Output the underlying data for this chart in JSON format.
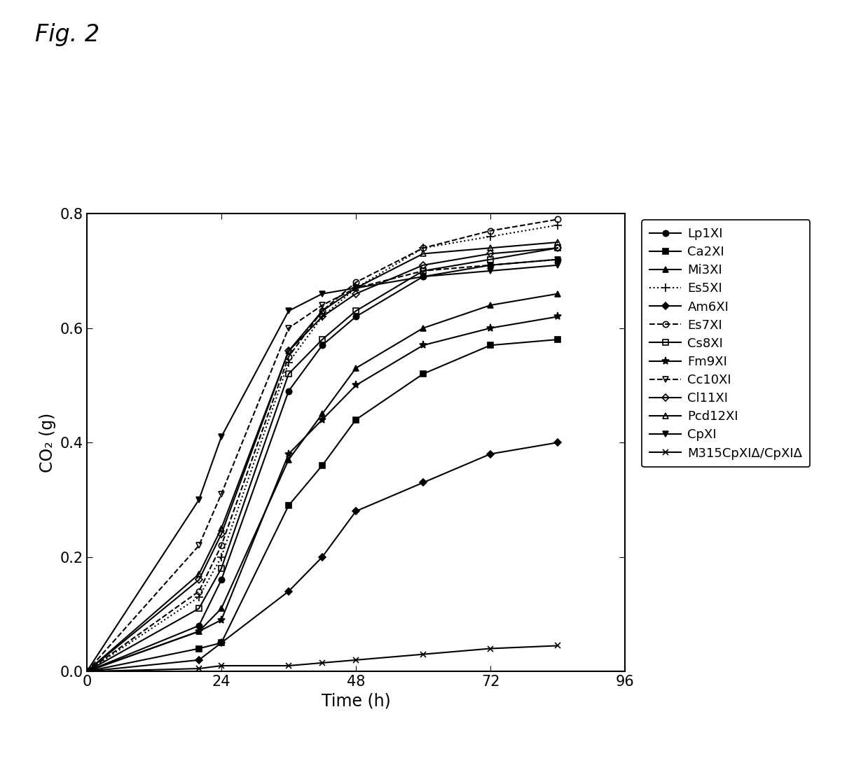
{
  "fig_label": "Fig. 2",
  "xlabel": "Time (h)",
  "ylabel": "CO₂ (g)",
  "xlim": [
    0,
    96
  ],
  "ylim": [
    0,
    0.8
  ],
  "xticks": [
    0,
    24,
    48,
    72,
    96
  ],
  "yticks": [
    0.0,
    0.2,
    0.4,
    0.6,
    0.8
  ],
  "series": [
    {
      "label": "Lp1XI",
      "marker": "o",
      "markersize": 6,
      "linestyle": "-",
      "fillstyle": "full",
      "x": [
        0,
        20,
        24,
        36,
        42,
        48,
        60,
        72,
        84
      ],
      "y": [
        0,
        0.08,
        0.16,
        0.49,
        0.57,
        0.62,
        0.69,
        0.71,
        0.72
      ]
    },
    {
      "label": "Ca2XI",
      "marker": "s",
      "markersize": 6,
      "linestyle": "-",
      "fillstyle": "full",
      "x": [
        0,
        20,
        24,
        36,
        42,
        48,
        60,
        72,
        84
      ],
      "y": [
        0,
        0.04,
        0.05,
        0.29,
        0.36,
        0.44,
        0.52,
        0.57,
        0.58
      ]
    },
    {
      "label": "Mi3XI",
      "marker": "^",
      "markersize": 6,
      "linestyle": "-",
      "fillstyle": "full",
      "x": [
        0,
        20,
        24,
        36,
        42,
        48,
        60,
        72,
        84
      ],
      "y": [
        0,
        0.07,
        0.11,
        0.37,
        0.45,
        0.53,
        0.6,
        0.64,
        0.66
      ]
    },
    {
      "label": "Es5XI",
      "marker": "+",
      "markersize": 8,
      "linestyle": ":",
      "fillstyle": "full",
      "x": [
        0,
        20,
        24,
        36,
        42,
        48,
        60,
        72,
        84
      ],
      "y": [
        0,
        0.13,
        0.2,
        0.54,
        0.62,
        0.67,
        0.74,
        0.76,
        0.78
      ]
    },
    {
      "label": "Am6XI",
      "marker": "D",
      "markersize": 5,
      "linestyle": "-",
      "fillstyle": "full",
      "x": [
        0,
        20,
        24,
        36,
        42,
        48,
        60,
        72,
        84
      ],
      "y": [
        0,
        0.02,
        0.05,
        0.14,
        0.2,
        0.28,
        0.33,
        0.38,
        0.4
      ]
    },
    {
      "label": "Es7XI",
      "marker": "o",
      "markersize": 6,
      "linestyle": "--",
      "fillstyle": "none",
      "x": [
        0,
        20,
        24,
        36,
        42,
        48,
        60,
        72,
        84
      ],
      "y": [
        0,
        0.14,
        0.22,
        0.55,
        0.63,
        0.68,
        0.74,
        0.77,
        0.79
      ]
    },
    {
      "label": "Cs8XI",
      "marker": "s",
      "markersize": 6,
      "linestyle": "-",
      "fillstyle": "none",
      "x": [
        0,
        20,
        24,
        36,
        42,
        48,
        60,
        72,
        84
      ],
      "y": [
        0,
        0.11,
        0.18,
        0.52,
        0.58,
        0.63,
        0.7,
        0.72,
        0.74
      ]
    },
    {
      "label": "Fm9XI",
      "marker": "*",
      "markersize": 8,
      "linestyle": "-",
      "fillstyle": "full",
      "x": [
        0,
        20,
        24,
        36,
        42,
        48,
        60,
        72,
        84
      ],
      "y": [
        0,
        0.07,
        0.09,
        0.38,
        0.44,
        0.5,
        0.57,
        0.6,
        0.62
      ]
    },
    {
      "label": "Cc10XI",
      "marker": "v",
      "markersize": 6,
      "linestyle": "--",
      "fillstyle": "none",
      "x": [
        0,
        20,
        24,
        36,
        42,
        48,
        60,
        72,
        84
      ],
      "y": [
        0,
        0.22,
        0.31,
        0.6,
        0.64,
        0.67,
        0.7,
        0.71,
        0.72
      ]
    },
    {
      "label": "Cl11XI",
      "marker": "D",
      "markersize": 5,
      "linestyle": "-",
      "fillstyle": "none",
      "x": [
        0,
        20,
        24,
        36,
        42,
        48,
        60,
        72,
        84
      ],
      "y": [
        0,
        0.16,
        0.24,
        0.56,
        0.62,
        0.66,
        0.71,
        0.73,
        0.74
      ]
    },
    {
      "label": "Pcd12XI",
      "marker": "^",
      "markersize": 6,
      "linestyle": "-",
      "fillstyle": "none",
      "x": [
        0,
        20,
        24,
        36,
        42,
        48,
        60,
        72,
        84
      ],
      "y": [
        0,
        0.17,
        0.25,
        0.56,
        0.63,
        0.67,
        0.73,
        0.74,
        0.75
      ]
    },
    {
      "label": "CpXI",
      "marker": "v",
      "markersize": 6,
      "linestyle": "-",
      "fillstyle": "full",
      "x": [
        0,
        20,
        24,
        36,
        42,
        48,
        60,
        72,
        84
      ],
      "y": [
        0,
        0.3,
        0.41,
        0.63,
        0.66,
        0.67,
        0.69,
        0.7,
        0.71
      ]
    },
    {
      "label": "M315CpXIΔ/CpXIΔ",
      "marker": "x",
      "markersize": 6,
      "linestyle": "-",
      "fillstyle": "full",
      "x": [
        0,
        20,
        24,
        36,
        42,
        48,
        60,
        72,
        84
      ],
      "y": [
        0,
        0.005,
        0.01,
        0.01,
        0.015,
        0.02,
        0.03,
        0.04,
        0.045
      ]
    }
  ],
  "legend_fontsize": 13,
  "axis_fontsize": 17,
  "tick_fontsize": 15,
  "fig_label_fontsize": 24,
  "linewidth": 1.5
}
